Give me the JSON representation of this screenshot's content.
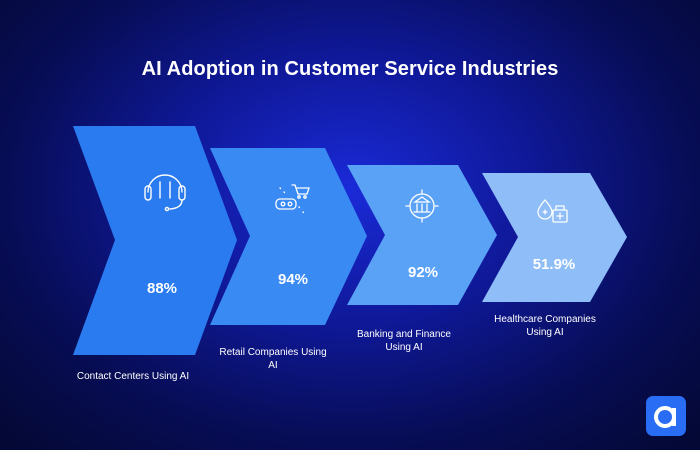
{
  "title": "AI Adoption in Customer Service Industries",
  "stages": [
    {
      "value": "88%",
      "label": "Contact Centers Using AI",
      "icon": "headset-icon",
      "color": "#2a7bf0"
    },
    {
      "value": "94%",
      "label": "Retail Companies Using AI",
      "icon": "shopping-cart-icon",
      "color": "#3a8af3"
    },
    {
      "value": "92%",
      "label": "Banking and Finance Using AI",
      "icon": "bank-icon",
      "color": "#5aa2f6"
    },
    {
      "value": "51.9%",
      "label": "Healthcare Companies Using AI",
      "icon": "medical-icon",
      "color": "#8ebdf8"
    }
  ],
  "logo": {
    "icon": "brand-logo-icon",
    "color": "#2a6df5"
  }
}
